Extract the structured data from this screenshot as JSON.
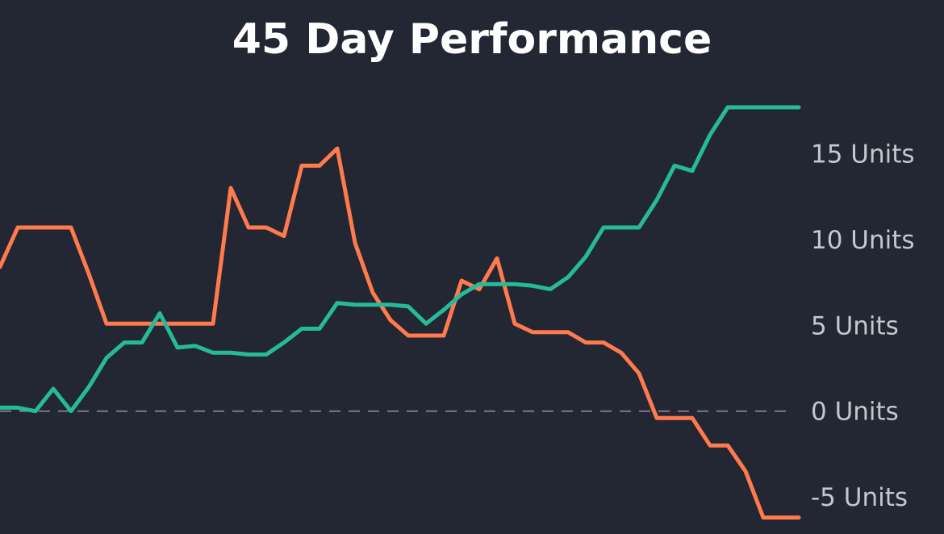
{
  "colors": {
    "background": "#232733",
    "text": "#ffffff",
    "tick_text": "#c4c7ce",
    "zero_line": "#8a8d96"
  },
  "chart_data": {
    "type": "line",
    "title": "45 Day Performance",
    "xlabel": "",
    "ylabel": "",
    "ylim": [
      -6.5,
      18.5
    ],
    "y_ticks": [
      -5,
      0,
      5,
      10,
      15
    ],
    "y_tick_labels": [
      "-5 Units",
      "0 Units",
      "5 Units",
      "10 Units",
      "15 Units"
    ],
    "y_axis_position": "right",
    "grid": false,
    "baseline": {
      "value": 0,
      "style": "dashed"
    },
    "legend": "none",
    "x": [
      1,
      2,
      3,
      4,
      5,
      6,
      7,
      8,
      9,
      10,
      11,
      12,
      13,
      14,
      15,
      16,
      17,
      18,
      19,
      20,
      21,
      22,
      23,
      24,
      25,
      26,
      27,
      28,
      29,
      30,
      31,
      32,
      33,
      34,
      35,
      36,
      37,
      38,
      39,
      40,
      41,
      42,
      43,
      44,
      45,
      46
    ],
    "series": [
      {
        "color": "#ff7a4d",
        "values": [
          8.4,
          10.7,
          10.7,
          10.7,
          10.7,
          8.0,
          5.1,
          5.1,
          5.1,
          5.1,
          5.1,
          5.1,
          5.1,
          13.0,
          10.7,
          10.7,
          10.2,
          14.3,
          14.3,
          15.3,
          9.8,
          6.9,
          5.3,
          4.4,
          4.4,
          4.4,
          7.6,
          7.1,
          8.9,
          5.1,
          4.6,
          4.6,
          4.6,
          4.0,
          4.0,
          3.4,
          2.2,
          -0.4,
          -0.4,
          -0.4,
          -2.0,
          -2.0,
          -3.5,
          -6.2,
          -6.2,
          -6.2
        ]
      },
      {
        "color": "#26bb98",
        "values": [
          0.2,
          0.2,
          0.0,
          1.3,
          0.0,
          1.4,
          3.1,
          4.0,
          4.0,
          5.7,
          3.7,
          3.8,
          3.4,
          3.4,
          3.3,
          3.3,
          4.0,
          4.8,
          4.8,
          6.3,
          6.2,
          6.2,
          6.2,
          6.1,
          5.1,
          5.9,
          6.8,
          7.4,
          7.4,
          7.4,
          7.3,
          7.1,
          7.8,
          9.0,
          10.7,
          10.7,
          10.7,
          12.3,
          14.3,
          14.0,
          16.1,
          17.7,
          17.7,
          17.7,
          17.7,
          17.7
        ]
      }
    ]
  }
}
